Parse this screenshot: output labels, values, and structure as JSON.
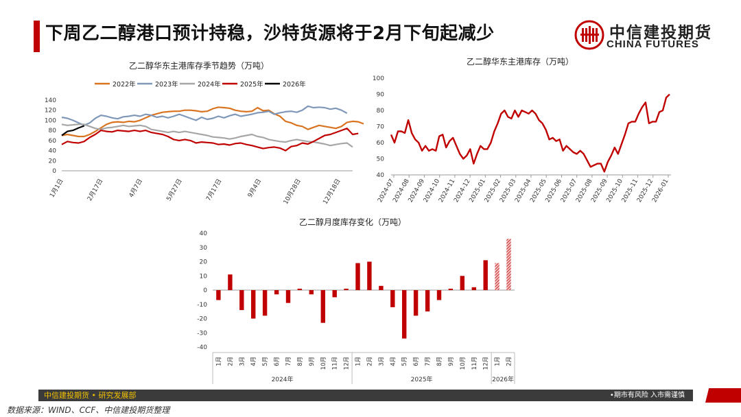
{
  "header": {
    "title": "下周乙二醇港口预计持稳，沙特货源将于2月下旬起减少",
    "logo_cn": "中信建投期货",
    "logo_en": "CHINA FUTURES",
    "accent_color": "#c00000"
  },
  "footer": {
    "left_text": "中信建投期货 • 研究发展部",
    "right_text": "•期市有风险  入市需谨慎",
    "source": "数据来源：WIND、CCF、中信建投期货整理"
  },
  "chart_data": [
    {
      "type": "line",
      "title": "乙二醇华东主港库存季节趋势（万吨）",
      "x_tick_labels": [
        "1月1日",
        "2月17日",
        "4月7日",
        "5月27日",
        "7月17日",
        "9月4日",
        "10月28日",
        "12月18日"
      ],
      "ylim": [
        0,
        140
      ],
      "y_ticks": [
        0,
        20,
        40,
        60,
        80,
        100,
        120,
        140
      ],
      "x_weeks": 52,
      "series": [
        {
          "name": "2022年",
          "color": "#d9731f",
          "values": [
            70,
            72,
            70,
            68,
            68,
            72,
            78,
            85,
            92,
            96,
            97,
            96,
            98,
            97,
            100,
            105,
            110,
            113,
            116,
            117,
            118,
            118,
            120,
            120,
            119,
            117,
            118,
            123,
            126,
            125,
            124,
            120,
            118,
            117,
            118,
            125,
            119,
            120,
            113,
            108,
            98,
            95,
            90,
            88,
            82,
            86,
            90,
            88,
            86,
            84,
            88,
            96,
            98,
            97,
            93,
            90
          ]
        },
        {
          "name": "2023年",
          "color": "#7f98b8",
          "values": [
            106,
            104,
            100,
            95,
            90,
            95,
            104,
            110,
            108,
            105,
            103,
            107,
            108,
            110,
            108,
            112,
            110,
            106,
            108,
            105,
            108,
            112,
            108,
            104,
            100,
            106,
            102,
            104,
            108,
            105,
            109,
            112,
            108,
            110,
            112,
            115,
            116,
            118,
            112,
            115,
            117,
            118,
            116,
            120,
            128,
            125,
            126,
            125,
            122,
            124,
            120,
            114
          ]
        },
        {
          "name": "2024年",
          "color": "#a6a6a6",
          "values": [
            92,
            90,
            91,
            92,
            92,
            88,
            84,
            82,
            85,
            86,
            88,
            90,
            88,
            89,
            90,
            88,
            82,
            80,
            78,
            76,
            78,
            76,
            78,
            76,
            74,
            72,
            70,
            67,
            66,
            65,
            63,
            65,
            68,
            70,
            72,
            68,
            66,
            62,
            60,
            58,
            57,
            60,
            62,
            60,
            58,
            57,
            55,
            53,
            50,
            52,
            54,
            55,
            47
          ]
        },
        {
          "name": "2025年",
          "color": "#c00000",
          "values": [
            52,
            58,
            56,
            55,
            58,
            66,
            72,
            80,
            78,
            77,
            80,
            79,
            78,
            80,
            78,
            80,
            76,
            74,
            72,
            68,
            62,
            60,
            62,
            60,
            55,
            57,
            56,
            55,
            52,
            53,
            51,
            54,
            55,
            52,
            50,
            47,
            44,
            46,
            47,
            45,
            40,
            48,
            50,
            55,
            53,
            58,
            64,
            70,
            72,
            76,
            80,
            84,
            72,
            74
          ]
        },
        {
          "name": "2026年",
          "color": "#000000",
          "values": [
            70,
            78,
            80,
            85,
            89
          ]
        }
      ]
    },
    {
      "type": "line",
      "title": "乙二醇华东主港库存（万吨）",
      "ylim": [
        40,
        100
      ],
      "y_ticks": [
        40,
        50,
        60,
        70,
        80,
        90,
        100
      ],
      "x_tick_labels": [
        "2024-07",
        "2024-08",
        "2024-09",
        "2024-10",
        "2024-11",
        "2024-12",
        "2025-01",
        "2025-02",
        "2025-03",
        "2025-04",
        "2025-05",
        "2025-06",
        "2025-07",
        "2025-08",
        "2025-09",
        "2025-10",
        "2025-11",
        "2025-12",
        "2026-01"
      ],
      "series": [
        {
          "name": "华东主港库存",
          "color": "#c00000",
          "values": [
            65,
            60,
            67,
            67,
            66,
            74,
            66,
            62,
            60,
            55,
            58,
            55,
            56,
            55,
            64,
            65,
            57,
            61,
            63,
            58,
            53,
            50,
            52,
            56,
            47,
            53,
            58,
            56,
            56,
            60,
            67,
            72,
            78,
            80,
            76,
            75,
            80,
            76,
            80,
            79,
            78,
            80,
            78,
            74,
            72,
            68,
            62,
            63,
            61,
            62,
            55,
            58,
            56,
            54,
            53,
            55,
            53,
            49,
            45,
            46,
            47,
            47,
            42,
            48,
            52,
            57,
            53,
            59,
            65,
            72,
            73,
            73,
            78,
            82,
            85,
            72,
            73,
            73,
            79,
            80,
            88,
            90
          ]
        }
      ]
    },
    {
      "type": "bar",
      "title": "乙二醇月度库存变化（万吨）",
      "ylim": [
        -40,
        40
      ],
      "y_ticks": [
        -40,
        -30,
        -20,
        -10,
        0,
        10,
        20,
        30,
        40
      ],
      "groups": [
        {
          "label": "2024年",
          "categories": [
            "1月",
            "2月",
            "3月",
            "4月",
            "5月",
            "6月",
            "7月",
            "8月",
            "9月",
            "10月",
            "11月",
            "12月"
          ],
          "values": [
            -7,
            11,
            -14,
            -20,
            -18,
            -3,
            -9,
            1,
            -3,
            -23,
            -5,
            1
          ]
        },
        {
          "label": "2025年",
          "categories": [
            "1月",
            "2月",
            "3月",
            "4月",
            "5月",
            "6月",
            "7月",
            "8月",
            "9月",
            "10月",
            "11月",
            "12月"
          ],
          "values": [
            19,
            20,
            3,
            -12,
            -34,
            -18,
            -15,
            -7,
            1,
            10,
            2,
            21
          ]
        },
        {
          "label": "2026年",
          "categories": [
            "1月",
            "2月"
          ],
          "values": [
            19,
            36
          ],
          "forecast": true
        }
      ],
      "color": "#c00000"
    }
  ]
}
